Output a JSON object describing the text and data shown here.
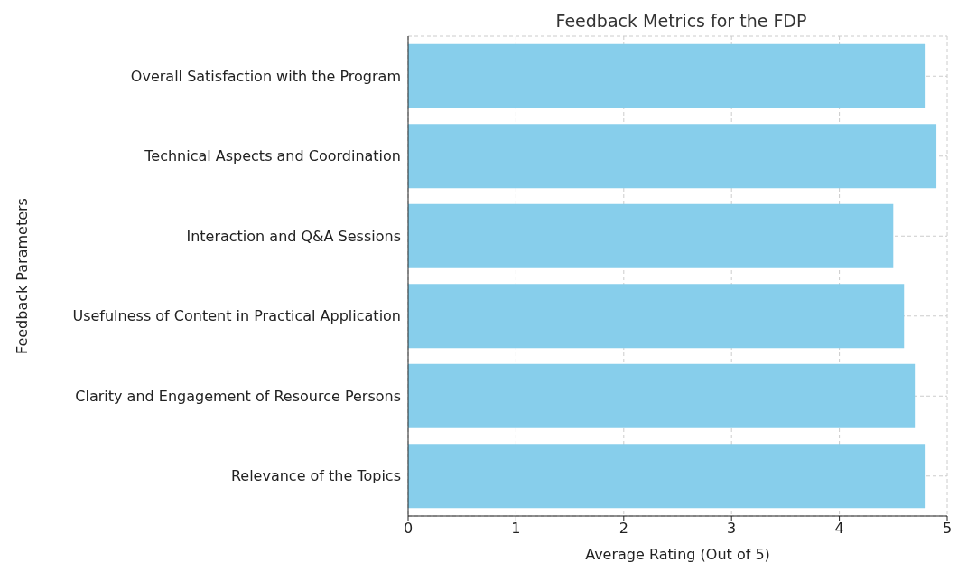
{
  "chart_data": {
    "type": "bar",
    "orientation": "horizontal",
    "title": "Feedback Metrics for the FDP",
    "xlabel": "Average Rating (Out of 5)",
    "ylabel": "Feedback Parameters",
    "categories": [
      "Overall Satisfaction with the Program",
      "Technical Aspects and Coordination",
      "Interaction and Q&A Sessions",
      "Usefulness of Content in Practical Application",
      "Clarity and Engagement of Resource Persons",
      "Relevance of the Topics"
    ],
    "values": [
      4.8,
      4.9,
      4.5,
      4.6,
      4.7,
      4.8
    ],
    "color": "#87ceeb",
    "xlim": [
      0,
      5
    ],
    "xticks": [
      0,
      1,
      2,
      3,
      4,
      5
    ],
    "grid": true
  }
}
